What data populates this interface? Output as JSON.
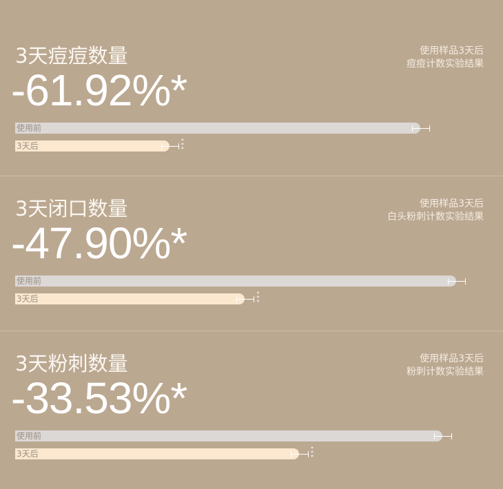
{
  "chart_data": [
    {
      "type": "bar",
      "orientation": "horizontal",
      "title": "3天痘痘数量",
      "headline": "-61.92%*",
      "note": [
        "使用样品3天后",
        "痘痘计数实验结果"
      ],
      "categories": [
        "使用前",
        "3天后"
      ],
      "values": [
        100,
        38.08
      ],
      "xlim": [
        0,
        117
      ],
      "error_bars": true,
      "significance": "***"
    },
    {
      "type": "bar",
      "orientation": "horizontal",
      "title": "3天闭口数量",
      "headline": "-47.90%*",
      "note": [
        "使用样品3天后",
        "白头粉刺计数实验结果"
      ],
      "categories": [
        "使用前",
        "3天后"
      ],
      "values": [
        100,
        52.1
      ],
      "xlim": [
        0,
        107.5
      ],
      "error_bars": true,
      "significance": "***"
    },
    {
      "type": "bar",
      "orientation": "horizontal",
      "title": "3天粉刺数量",
      "headline": "-33.53%*",
      "note": [
        "使用样品3天后",
        "粉刺计数实验结果"
      ],
      "categories": [
        "使用前",
        "3天后"
      ],
      "values": [
        100,
        66.47
      ],
      "xlim": [
        0,
        111
      ],
      "error_bars": true,
      "significance": "***"
    }
  ],
  "colors": {
    "background": "#bba891",
    "before_bar": "#dcd8d6",
    "after_bar": "#fbe8cf",
    "text": "#ffffff"
  }
}
